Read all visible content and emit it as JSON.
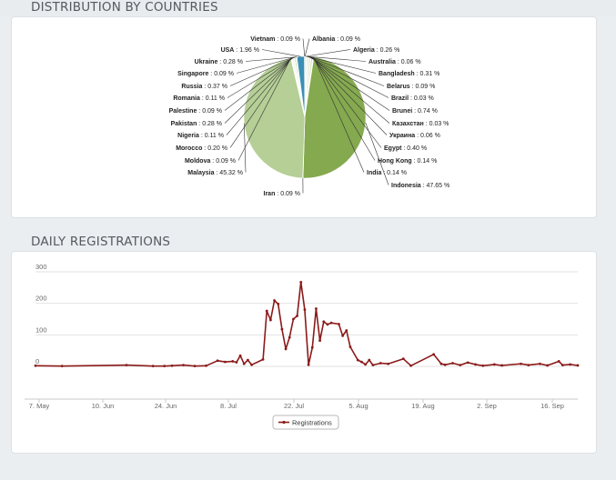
{
  "sections": {
    "countries_title": "DISTRIBUTION BY COUNTRIES",
    "daily_title": "DAILY REGISTRATIONS"
  },
  "colors": {
    "malaysia": "#b5cf96",
    "indonesia": "#85a94f",
    "usa": "#3a8fb4",
    "line": "#8b1a1a",
    "grid": "#e2e2e2"
  },
  "chart_data": [
    {
      "type": "pie",
      "title": "DISTRIBUTION BY COUNTRIES",
      "slices": [
        {
          "name": "Albania",
          "value": 0.09,
          "label": "Albania : 0.09 %"
        },
        {
          "name": "Algeria",
          "value": 0.26,
          "label": "Algeria : 0.26 %"
        },
        {
          "name": "Australia",
          "value": 0.06,
          "label": "Australia : 0.06 %"
        },
        {
          "name": "Bangladesh",
          "value": 0.31,
          "label": "Bangladesh : 0.31 %"
        },
        {
          "name": "Belarus",
          "value": 0.09,
          "label": "Belarus : 0.09 %"
        },
        {
          "name": "Brazil",
          "value": 0.03,
          "label": "Brazil : 0.03 %"
        },
        {
          "name": "Brunei",
          "value": 0.74,
          "label": "Brunei : 0.74 %"
        },
        {
          "name": "Казахстан",
          "value": 0.03,
          "label": "Казахстан : 0.03 %"
        },
        {
          "name": "Украина",
          "value": 0.06,
          "label": "Украина : 0.06 %"
        },
        {
          "name": "Egypt",
          "value": 0.4,
          "label": "Egypt : 0.40 %"
        },
        {
          "name": "Hong Kong",
          "value": 0.14,
          "label": "Hong Kong : 0.14 %"
        },
        {
          "name": "India",
          "value": 0.14,
          "label": "India : 0.14 %"
        },
        {
          "name": "Indonesia",
          "value": 47.65,
          "label": "Indonesia : 47.65 %"
        },
        {
          "name": "Iran",
          "value": 0.09,
          "label": "Iran : 0.09 %"
        },
        {
          "name": "Malaysia",
          "value": 45.32,
          "label": "Malaysia : 45.32 %"
        },
        {
          "name": "Moldova",
          "value": 0.09,
          "label": "Moldova : 0.09 %"
        },
        {
          "name": "Morocco",
          "value": 0.2,
          "label": "Morocco : 0.20 %"
        },
        {
          "name": "Nigeria",
          "value": 0.11,
          "label": "Nigeria : 0.11 %"
        },
        {
          "name": "Pakistan",
          "value": 0.28,
          "label": "Pakistan : 0.28 %"
        },
        {
          "name": "Palestine",
          "value": 0.09,
          "label": "Palestine : 0.09 %"
        },
        {
          "name": "Romania",
          "value": 0.11,
          "label": "Romania : 0.11 %"
        },
        {
          "name": "Russia",
          "value": 0.37,
          "label": "Russia : 0.37 %"
        },
        {
          "name": "Singapore",
          "value": 0.09,
          "label": "Singapore : 0.09 %"
        },
        {
          "name": "Ukraine",
          "value": 0.28,
          "label": "Ukraine : 0.28 %"
        },
        {
          "name": "USA",
          "value": 1.96,
          "label": "USA : 1.96 %"
        },
        {
          "name": "Vietnam",
          "value": 0.09,
          "label": "Vietnam : 0.09 %"
        }
      ]
    },
    {
      "type": "line",
      "title": "DAILY REGISTRATIONS",
      "ylim": [
        0,
        300
      ],
      "y_ticks": [
        0,
        100,
        200,
        300
      ],
      "x_ticks": [
        "7. May",
        "10. Jun",
        "24. Jun",
        "8. Jul",
        "22. Jul",
        "5. Aug",
        "19. Aug",
        "2. Sep",
        "16. Sep"
      ],
      "grid": true,
      "legend": "bottom-center",
      "series": [
        {
          "name": "Registrations",
          "points": [
            [
              "2014-05-07",
              2
            ],
            [
              "2014-05-14",
              1
            ],
            [
              "2014-05-31",
              4
            ],
            [
              "2014-06-07",
              1
            ],
            [
              "2014-06-10",
              1
            ],
            [
              "2014-06-12",
              2
            ],
            [
              "2014-06-15",
              4
            ],
            [
              "2014-06-18",
              1
            ],
            [
              "2014-06-21",
              2
            ],
            [
              "2014-06-24",
              18
            ],
            [
              "2014-06-26",
              14
            ],
            [
              "2014-06-28",
              16
            ],
            [
              "2014-06-29",
              13
            ],
            [
              "2014-06-30",
              34
            ],
            [
              "2014-07-01",
              8
            ],
            [
              "2014-07-02",
              20
            ],
            [
              "2014-07-03",
              5
            ],
            [
              "2014-07-06",
              22
            ],
            [
              "2014-07-07",
              176
            ],
            [
              "2014-07-08",
              147
            ],
            [
              "2014-07-09",
              209
            ],
            [
              "2014-07-10",
              198
            ],
            [
              "2014-07-11",
              118
            ],
            [
              "2014-07-12",
              55
            ],
            [
              "2014-07-13",
              92
            ],
            [
              "2014-07-14",
              150
            ],
            [
              "2014-07-15",
              160
            ],
            [
              "2014-07-16",
              267
            ],
            [
              "2014-07-17",
              180
            ],
            [
              "2014-07-18",
              5
            ],
            [
              "2014-07-19",
              60
            ],
            [
              "2014-07-20",
              183
            ],
            [
              "2014-07-21",
              82
            ],
            [
              "2014-07-22",
              142
            ],
            [
              "2014-07-23",
              133
            ],
            [
              "2014-07-24",
              138
            ],
            [
              "2014-07-26",
              134
            ],
            [
              "2014-07-27",
              97
            ],
            [
              "2014-07-28",
              114
            ],
            [
              "2014-07-29",
              62
            ],
            [
              "2014-07-31",
              20
            ],
            [
              "2014-08-01",
              14
            ],
            [
              "2014-08-02",
              6
            ],
            [
              "2014-08-03",
              20
            ],
            [
              "2014-08-04",
              4
            ],
            [
              "2014-08-06",
              10
            ],
            [
              "2014-08-08",
              8
            ],
            [
              "2014-08-12",
              24
            ],
            [
              "2014-08-14",
              2
            ],
            [
              "2014-08-20",
              38
            ],
            [
              "2014-08-22",
              8
            ],
            [
              "2014-08-23",
              5
            ],
            [
              "2014-08-25",
              10
            ],
            [
              "2014-08-27",
              4
            ],
            [
              "2014-08-29",
              12
            ],
            [
              "2014-08-31",
              6
            ],
            [
              "2014-09-02",
              2
            ],
            [
              "2014-09-05",
              6
            ],
            [
              "2014-09-07",
              3
            ],
            [
              "2014-09-12",
              8
            ],
            [
              "2014-09-14",
              4
            ],
            [
              "2014-09-17",
              8
            ],
            [
              "2014-09-19",
              3
            ],
            [
              "2014-09-22",
              16
            ],
            [
              "2014-09-23",
              4
            ],
            [
              "2014-09-25",
              6
            ],
            [
              "2014-09-27",
              3
            ]
          ]
        }
      ]
    }
  ]
}
